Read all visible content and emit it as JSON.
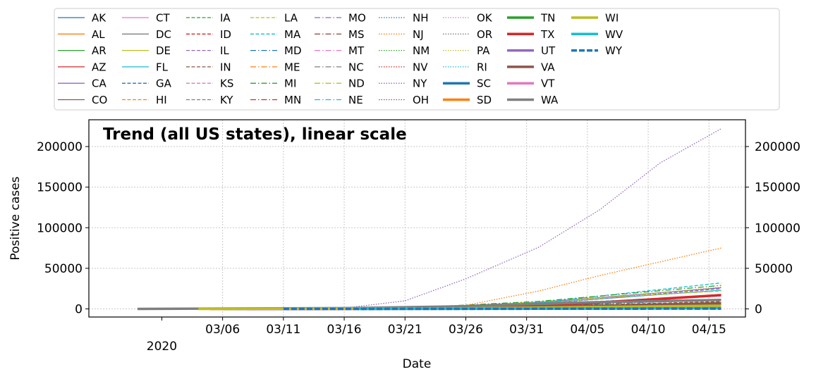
{
  "chart_data": {
    "type": "line",
    "title": "Trend (all US states), linear scale",
    "xlabel": "Date",
    "ylabel": "Positive cases",
    "x_tick_labels": [
      "03/06",
      "03/11",
      "03/16",
      "03/21",
      "03/26",
      "03/31",
      "04/05",
      "04/10",
      "04/15"
    ],
    "x_tick_dates": [
      "2020-03-06",
      "2020-03-11",
      "2020-03-16",
      "2020-03-21",
      "2020-03-26",
      "2020-03-31",
      "2020-04-05",
      "2020-04-10",
      "2020-04-15"
    ],
    "x_year_tick": {
      "date": "2020-03-01",
      "label": "2020"
    },
    "xlim": [
      "2020-02-24",
      "2020-04-18"
    ],
    "ylim": [
      -10000,
      233000
    ],
    "y_ticks": [
      0,
      50000,
      100000,
      150000,
      200000
    ],
    "y_tick_labels": [
      "0",
      "50000",
      "100000",
      "150000",
      "200000"
    ],
    "grid": true,
    "legend_placement": "top, outside plot, 11 columns",
    "series": [
      {
        "name": "AK",
        "values": [
          [
            "2020-02-28",
            0
          ],
          [
            "2020-03-20",
            40
          ],
          [
            "2020-04-16",
            300
          ]
        ]
      },
      {
        "name": "AL",
        "values": [
          [
            "2020-03-13",
            6
          ],
          [
            "2020-03-25",
            500
          ],
          [
            "2020-04-16",
            4300
          ]
        ]
      },
      {
        "name": "AR",
        "values": [
          [
            "2020-03-11",
            1
          ],
          [
            "2020-03-25",
            300
          ],
          [
            "2020-04-16",
            1600
          ]
        ]
      },
      {
        "name": "AZ",
        "values": [
          [
            "2020-03-04",
            2
          ],
          [
            "2020-03-25",
            400
          ],
          [
            "2020-04-16",
            4200
          ]
        ]
      },
      {
        "name": "CA",
        "values": [
          [
            "2020-03-04",
            50
          ],
          [
            "2020-03-21",
            1300
          ],
          [
            "2020-04-01",
            8000
          ],
          [
            "2020-04-16",
            26000
          ]
        ]
      },
      {
        "name": "CO",
        "values": [
          [
            "2020-03-04",
            0
          ],
          [
            "2020-03-25",
            1000
          ],
          [
            "2020-04-16",
            8000
          ]
        ]
      },
      {
        "name": "CT",
        "values": [
          [
            "2020-03-08",
            1
          ],
          [
            "2020-03-25",
            900
          ],
          [
            "2020-04-05",
            5500
          ],
          [
            "2020-04-16",
            16000
          ]
        ]
      },
      {
        "name": "DC",
        "values": [
          [
            "2020-02-28",
            0
          ],
          [
            "2020-03-25",
            200
          ],
          [
            "2020-04-16",
            2300
          ]
        ]
      },
      {
        "name": "DE",
        "values": [
          [
            "2020-03-04",
            0
          ],
          [
            "2020-03-25",
            120
          ],
          [
            "2020-04-16",
            2000
          ]
        ]
      },
      {
        "name": "FL",
        "values": [
          [
            "2020-03-04",
            2
          ],
          [
            "2020-03-21",
            800
          ],
          [
            "2020-04-01",
            7000
          ],
          [
            "2020-04-16",
            23000
          ]
        ]
      },
      {
        "name": "GA",
        "values": [
          [
            "2020-03-04",
            2
          ],
          [
            "2020-03-25",
            1200
          ],
          [
            "2020-04-16",
            16000
          ]
        ]
      },
      {
        "name": "HI",
        "values": [
          [
            "2020-03-07",
            1
          ],
          [
            "2020-03-25",
            90
          ],
          [
            "2020-04-16",
            550
          ]
        ]
      },
      {
        "name": "IA",
        "values": [
          [
            "2020-03-09",
            3
          ],
          [
            "2020-03-25",
            120
          ],
          [
            "2020-04-16",
            2300
          ]
        ]
      },
      {
        "name": "ID",
        "values": [
          [
            "2020-03-14",
            1
          ],
          [
            "2020-03-25",
            120
          ],
          [
            "2020-04-16",
            1600
          ]
        ]
      },
      {
        "name": "IL",
        "values": [
          [
            "2020-03-04",
            4
          ],
          [
            "2020-03-21",
            750
          ],
          [
            "2020-04-01",
            6000
          ],
          [
            "2020-04-16",
            25000
          ]
        ]
      },
      {
        "name": "IN",
        "values": [
          [
            "2020-03-07",
            1
          ],
          [
            "2020-03-25",
            480
          ],
          [
            "2020-04-16",
            9000
          ]
        ]
      },
      {
        "name": "KS",
        "values": [
          [
            "2020-03-08",
            1
          ],
          [
            "2020-03-25",
            130
          ],
          [
            "2020-04-16",
            1600
          ]
        ]
      },
      {
        "name": "KY",
        "values": [
          [
            "2020-03-07",
            1
          ],
          [
            "2020-03-25",
            200
          ],
          [
            "2020-04-16",
            2400
          ]
        ]
      },
      {
        "name": "LA",
        "values": [
          [
            "2020-03-10",
            1
          ],
          [
            "2020-03-25",
            1800
          ],
          [
            "2020-04-05",
            13000
          ],
          [
            "2020-04-16",
            22000
          ]
        ]
      },
      {
        "name": "MA",
        "values": [
          [
            "2020-03-04",
            1
          ],
          [
            "2020-03-21",
            400
          ],
          [
            "2020-04-01",
            7700
          ],
          [
            "2020-04-16",
            32000
          ]
        ]
      },
      {
        "name": "MD",
        "values": [
          [
            "2020-03-06",
            3
          ],
          [
            "2020-03-25",
            400
          ],
          [
            "2020-04-16",
            11000
          ]
        ]
      },
      {
        "name": "ME",
        "values": [
          [
            "2020-03-12",
            1
          ],
          [
            "2020-03-25",
            140
          ],
          [
            "2020-04-16",
            800
          ]
        ]
      },
      {
        "name": "MI",
        "values": [
          [
            "2020-03-11",
            2
          ],
          [
            "2020-03-21",
            1000
          ],
          [
            "2020-04-01",
            9300
          ],
          [
            "2020-04-16",
            29000
          ]
        ]
      },
      {
        "name": "MN",
        "values": [
          [
            "2020-03-07",
            1
          ],
          [
            "2020-03-25",
            290
          ],
          [
            "2020-04-16",
            1900
          ]
        ]
      },
      {
        "name": "MO",
        "values": [
          [
            "2020-03-08",
            1
          ],
          [
            "2020-03-25",
            360
          ],
          [
            "2020-04-16",
            5000
          ]
        ]
      },
      {
        "name": "MS",
        "values": [
          [
            "2020-03-12",
            1
          ],
          [
            "2020-03-25",
            380
          ],
          [
            "2020-04-16",
            3700
          ]
        ]
      },
      {
        "name": "MT",
        "values": [
          [
            "2020-03-13",
            1
          ],
          [
            "2020-03-25",
            60
          ],
          [
            "2020-04-16",
            400
          ]
        ]
      },
      {
        "name": "NC",
        "values": [
          [
            "2020-03-04",
            1
          ],
          [
            "2020-03-25",
            600
          ],
          [
            "2020-04-16",
            5500
          ]
        ]
      },
      {
        "name": "ND",
        "values": [
          [
            "2020-03-12",
            1
          ],
          [
            "2020-03-25",
            40
          ],
          [
            "2020-04-16",
            400
          ]
        ]
      },
      {
        "name": "NE",
        "values": [
          [
            "2020-03-06",
            1
          ],
          [
            "2020-03-25",
            70
          ],
          [
            "2020-04-16",
            1000
          ]
        ]
      },
      {
        "name": "NH",
        "values": [
          [
            "2020-03-02",
            2
          ],
          [
            "2020-03-25",
            110
          ],
          [
            "2020-04-16",
            1100
          ]
        ]
      },
      {
        "name": "NJ",
        "values": [
          [
            "2020-03-04",
            1
          ],
          [
            "2020-03-21",
            1300
          ],
          [
            "2020-03-26",
            4400
          ],
          [
            "2020-04-01",
            22000
          ],
          [
            "2020-04-06",
            41000
          ],
          [
            "2020-04-11",
            58000
          ],
          [
            "2020-04-16",
            75000
          ]
        ]
      },
      {
        "name": "NM",
        "values": [
          [
            "2020-03-12",
            3
          ],
          [
            "2020-03-25",
            110
          ],
          [
            "2020-04-16",
            1700
          ]
        ]
      },
      {
        "name": "NV",
        "values": [
          [
            "2020-03-06",
            1
          ],
          [
            "2020-03-25",
            400
          ],
          [
            "2020-04-16",
            3200
          ]
        ]
      },
      {
        "name": "NY",
        "values": [
          [
            "2020-03-04",
            6
          ],
          [
            "2020-03-11",
            200
          ],
          [
            "2020-03-16",
            950
          ],
          [
            "2020-03-21",
            10000
          ],
          [
            "2020-03-26",
            37000
          ],
          [
            "2020-04-01",
            76000
          ],
          [
            "2020-04-06",
            122000
          ],
          [
            "2020-04-11",
            180000
          ],
          [
            "2020-04-16",
            222000
          ]
        ]
      },
      {
        "name": "OH",
        "values": [
          [
            "2020-03-10",
            3
          ],
          [
            "2020-03-25",
            700
          ],
          [
            "2020-04-16",
            8000
          ]
        ]
      },
      {
        "name": "OK",
        "values": [
          [
            "2020-03-07",
            1
          ],
          [
            "2020-03-25",
            160
          ],
          [
            "2020-04-16",
            2300
          ]
        ]
      },
      {
        "name": "OR",
        "values": [
          [
            "2020-03-04",
            1
          ],
          [
            "2020-03-25",
            200
          ],
          [
            "2020-04-16",
            1700
          ]
        ]
      },
      {
        "name": "PA",
        "values": [
          [
            "2020-03-07",
            2
          ],
          [
            "2020-03-21",
            400
          ],
          [
            "2020-04-01",
            6000
          ],
          [
            "2020-04-16",
            27000
          ]
        ]
      },
      {
        "name": "RI",
        "values": [
          [
            "2020-03-04",
            2
          ],
          [
            "2020-03-25",
            130
          ],
          [
            "2020-04-16",
            4500
          ]
        ]
      },
      {
        "name": "SC",
        "values": [
          [
            "2020-03-08",
            2
          ],
          [
            "2020-03-25",
            420
          ],
          [
            "2020-04-16",
            3800
          ]
        ]
      },
      {
        "name": "SD",
        "values": [
          [
            "2020-03-11",
            8
          ],
          [
            "2020-03-25",
            40
          ],
          [
            "2020-04-16",
            1300
          ]
        ]
      },
      {
        "name": "TN",
        "values": [
          [
            "2020-03-06",
            1
          ],
          [
            "2020-03-25",
            900
          ],
          [
            "2020-04-16",
            6000
          ]
        ]
      },
      {
        "name": "TX",
        "values": [
          [
            "2020-03-05",
            1
          ],
          [
            "2020-03-25",
            1000
          ],
          [
            "2020-04-05",
            7000
          ],
          [
            "2020-04-16",
            17000
          ]
        ]
      },
      {
        "name": "UT",
        "values": [
          [
            "2020-03-07",
            1
          ],
          [
            "2020-03-25",
            400
          ],
          [
            "2020-04-16",
            2600
          ]
        ]
      },
      {
        "name": "VA",
        "values": [
          [
            "2020-03-08",
            2
          ],
          [
            "2020-03-25",
            390
          ],
          [
            "2020-04-16",
            6500
          ]
        ]
      },
      {
        "name": "VT",
        "values": [
          [
            "2020-03-08",
            1
          ],
          [
            "2020-03-25",
            120
          ],
          [
            "2020-04-16",
            770
          ]
        ]
      },
      {
        "name": "WA",
        "values": [
          [
            "2020-02-28",
            0
          ],
          [
            "2020-03-16",
            900
          ],
          [
            "2020-03-26",
            3200
          ],
          [
            "2020-04-05",
            8000
          ],
          [
            "2020-04-16",
            11000
          ]
        ]
      },
      {
        "name": "WI",
        "values": [
          [
            "2020-03-04",
            1
          ],
          [
            "2020-03-25",
            580
          ],
          [
            "2020-04-16",
            3900
          ]
        ]
      },
      {
        "name": "WV",
        "values": [
          [
            "2020-03-17",
            1
          ],
          [
            "2020-03-25",
            50
          ],
          [
            "2020-04-16",
            750
          ]
        ]
      },
      {
        "name": "WY",
        "values": [
          [
            "2020-03-11",
            1
          ],
          [
            "2020-03-25",
            50
          ],
          [
            "2020-04-16",
            300
          ]
        ]
      }
    ]
  }
}
